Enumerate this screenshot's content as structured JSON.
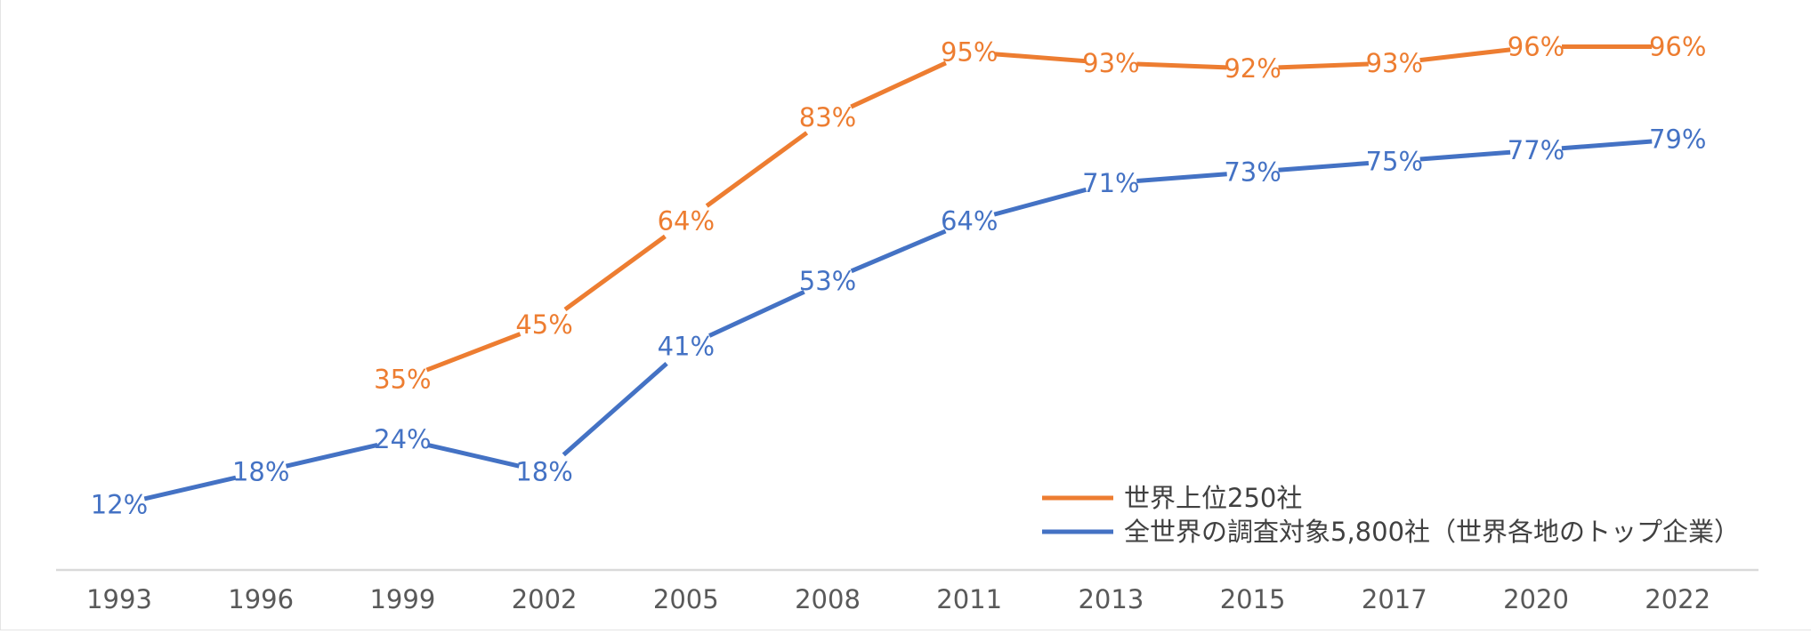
{
  "chart_data": {
    "type": "line",
    "categories": [
      "1993",
      "1996",
      "1999",
      "2002",
      "2005",
      "2008",
      "2011",
      "2013",
      "2015",
      "2017",
      "2020",
      "2022"
    ],
    "series": [
      {
        "name": "世界上位250社",
        "color": "#ED7D31",
        "values": [
          null,
          null,
          35,
          45,
          64,
          83,
          95,
          93,
          92,
          93,
          96,
          96
        ],
        "labels": [
          null,
          null,
          "35%",
          "45%",
          "64%",
          "83%",
          "95%",
          "93%",
          "92%",
          "93%",
          "96%",
          "96%"
        ]
      },
      {
        "name": "全世界の調査対象5,800社（世界各地のトップ企業）",
        "color": "#4472C4",
        "values": [
          12,
          18,
          24,
          18,
          41,
          53,
          64,
          71,
          73,
          75,
          77,
          79
        ],
        "labels": [
          "12%",
          "18%",
          "24%",
          "18%",
          "41%",
          "53%",
          "64%",
          "71%",
          "73%",
          "75%",
          "77%",
          "79%"
        ]
      }
    ],
    "ylim": [
      0,
      100
    ],
    "grid": false,
    "legend_position": "bottom-right",
    "axis_color": "#d9d9d9",
    "tick_color": "#595959"
  }
}
